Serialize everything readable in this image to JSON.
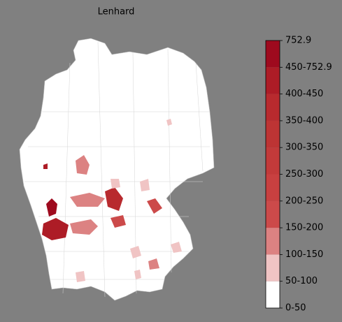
{
  "title": "Lenhard",
  "colorbar": {
    "labels": [
      "0-50",
      "50-100",
      "100-150",
      "150-200",
      "200-250",
      "250-300",
      "300-350",
      "350-400",
      "400-450",
      "450-752.9",
      "752.9"
    ],
    "colors": [
      "#ffffff",
      "#f0c4c4",
      "#dc8282",
      "#cc4a4a",
      "#c84040",
      "#c23a3a",
      "#bd3434",
      "#b82a2e",
      "#ad1c26",
      "#9e0a1e"
    ]
  }
}
